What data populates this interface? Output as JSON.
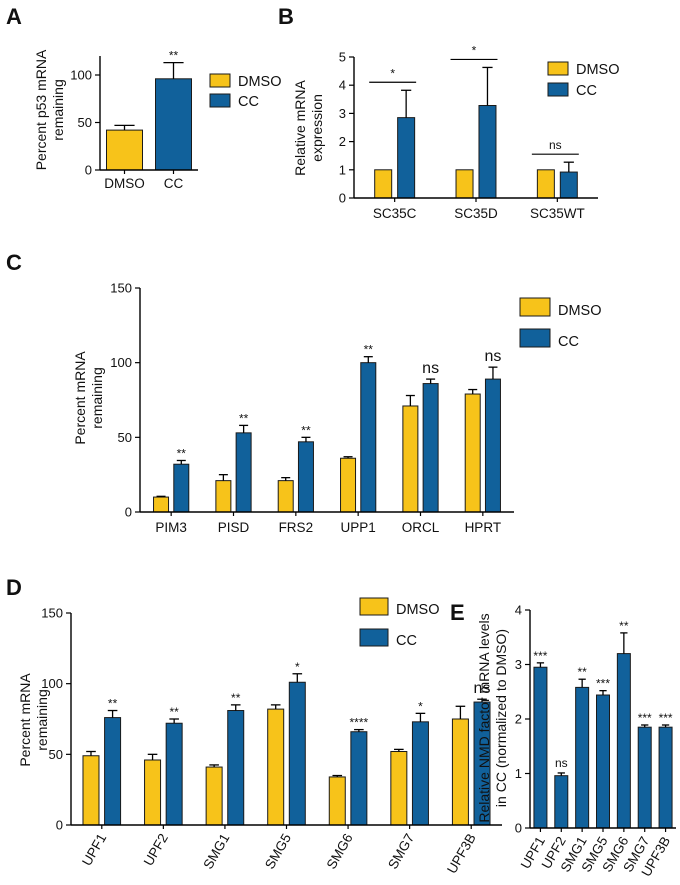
{
  "colors": {
    "dmso": "#F7C31A",
    "cc": "#11619B",
    "stroke": "#1a1a1a"
  },
  "chart_data": [
    {
      "id": "A",
      "panel_label": "A",
      "type": "bar",
      "ylabel_lines": [
        "Percent p53 mRNA",
        "remaining"
      ],
      "ylim": [
        0,
        120
      ],
      "yticks": [
        0,
        50,
        100
      ],
      "legend": [
        "DMSO",
        "CC"
      ],
      "categories": [
        "DMSO",
        "CC"
      ],
      "values": [
        42,
        96
      ],
      "errors": [
        5,
        17
      ],
      "colors": [
        "dmso",
        "cc"
      ],
      "annotations": [
        "",
        "**"
      ]
    },
    {
      "id": "B",
      "panel_label": "B",
      "type": "bar",
      "ylabel_lines": [
        "Relative mRNA",
        "expression"
      ],
      "ylim": [
        0,
        5
      ],
      "yticks": [
        0,
        1,
        2,
        3,
        4,
        5
      ],
      "legend": [
        "DMSO",
        "CC"
      ],
      "categories": [
        "SC35C",
        "SC35D",
        "SC35WT"
      ],
      "series": [
        {
          "name": "DMSO",
          "values": [
            1,
            1,
            1
          ],
          "errors": [
            0,
            0,
            0
          ]
        },
        {
          "name": "CC",
          "values": [
            2.85,
            3.28,
            0.92
          ],
          "errors": [
            0.97,
            1.35,
            0.35
          ]
        }
      ],
      "annotations": [
        "*",
        "*",
        "ns"
      ]
    },
    {
      "id": "C",
      "panel_label": "C",
      "type": "bar",
      "ylabel_lines": [
        "Percent  mRNA",
        "remaining"
      ],
      "ylim": [
        0,
        150
      ],
      "yticks": [
        0,
        50,
        100,
        150
      ],
      "legend": [
        "DMSO",
        "CC"
      ],
      "categories": [
        "PIM3",
        "PISD",
        "FRS2",
        "UPP1",
        "ORCL",
        "HPRT"
      ],
      "series": [
        {
          "name": "DMSO",
          "values": [
            10,
            21,
            21,
            36,
            71,
            79
          ],
          "errors": [
            0.5,
            4,
            2,
            1,
            7,
            3
          ]
        },
        {
          "name": "CC",
          "values": [
            32,
            53,
            47,
            100,
            86,
            89
          ],
          "errors": [
            2.5,
            5,
            3,
            4,
            3,
            8
          ]
        }
      ],
      "annotations": [
        "**",
        "**",
        "**",
        "**",
        "ns",
        "ns"
      ]
    },
    {
      "id": "D",
      "panel_label": "D",
      "type": "bar",
      "ylabel_lines": [
        "Percent  mRNA",
        "remaining"
      ],
      "ylim": [
        0,
        150
      ],
      "yticks": [
        0,
        50,
        100,
        150
      ],
      "legend": [
        "DMSO",
        "CC"
      ],
      "categories": [
        "UPF1",
        "UPF2",
        "SMG1",
        "SMG5",
        "SMG6",
        "SMG7",
        "UPF3B"
      ],
      "series": [
        {
          "name": "DMSO",
          "values": [
            49,
            46,
            41,
            82,
            34,
            52,
            75
          ],
          "errors": [
            3,
            4,
            1.5,
            3,
            1,
            1.5,
            9
          ]
        },
        {
          "name": "CC",
          "values": [
            76,
            72,
            81,
            101,
            66,
            73,
            87
          ],
          "errors": [
            5,
            3,
            4,
            6,
            1.5,
            6,
            2
          ]
        }
      ],
      "annotations": [
        "**",
        "**",
        "**",
        "*",
        "****",
        "*",
        "ns"
      ]
    },
    {
      "id": "E",
      "panel_label": "E",
      "type": "bar",
      "ylabel_lines": [
        "Relative NMD factor mRNA levels",
        "in CC (normalized to DMSO)"
      ],
      "ylim": [
        0,
        4
      ],
      "yticks": [
        0,
        1,
        2,
        3,
        4
      ],
      "categories": [
        "UPF1",
        "UPF2",
        "SMG1",
        "SMG5",
        "SMG6",
        "SMG7",
        "UPF3B"
      ],
      "values": [
        2.95,
        0.96,
        2.58,
        2.44,
        3.2,
        1.85,
        1.85
      ],
      "errors": [
        0.08,
        0.05,
        0.15,
        0.08,
        0.38,
        0.04,
        0.04
      ],
      "annotations": [
        "***",
        "ns",
        "**",
        "***",
        "**",
        "***",
        "***"
      ]
    }
  ]
}
